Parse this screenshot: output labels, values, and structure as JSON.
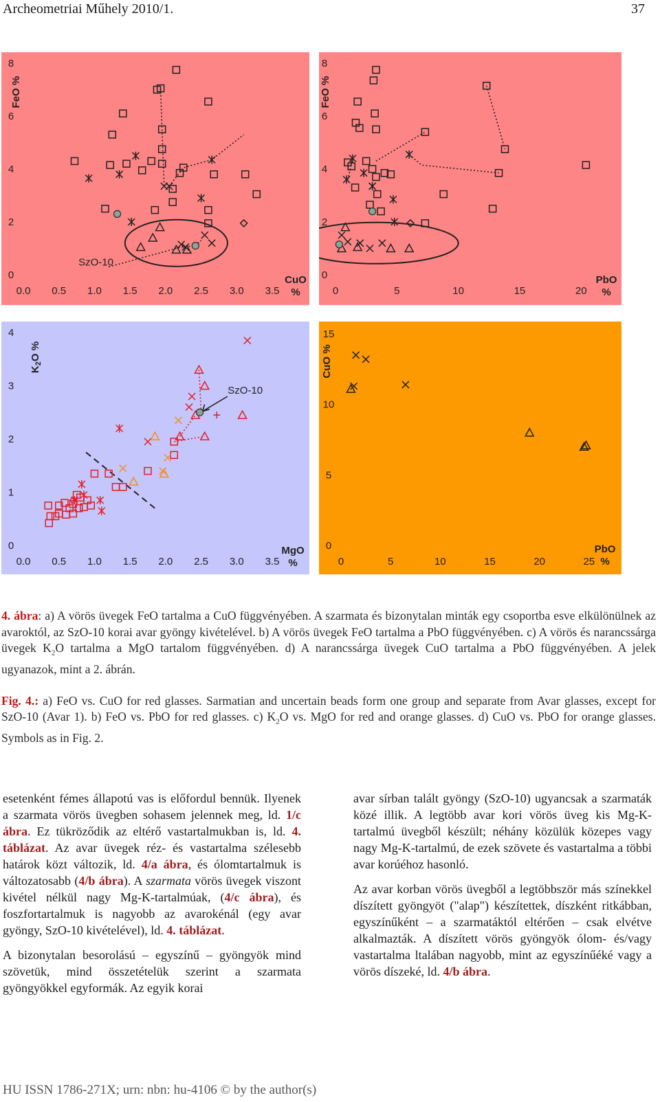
{
  "header": {
    "journal": "Archeometriai Műhely 2010/1.",
    "page": "37"
  },
  "colors": {
    "red_panel": "#fe8585",
    "blue_panel": "#c4c6fc",
    "orange_panel": "#fe9a01",
    "red_mark": "#e21f24",
    "orange_mark": "#f68c1f"
  },
  "charts": {
    "a": {
      "ylabel": "FeO %",
      "xlabel_top": "CuO",
      "xlabel_bottom": "%",
      "annotation": "SzO-10",
      "x_ticks": [
        "0.0",
        "0.5",
        "1.0",
        "1.5",
        "2.0",
        "2.5",
        "3.0",
        "3.5"
      ],
      "y_ticks": [
        "0",
        "2",
        "4",
        "6",
        "8"
      ]
    },
    "b": {
      "ylabel": "FeO %",
      "xlabel_top": "PbO",
      "xlabel_bottom": "%",
      "x_ticks": [
        "0",
        "5",
        "10",
        "15",
        "20"
      ],
      "y_ticks": [
        "0",
        "2",
        "4",
        "6",
        "8"
      ]
    },
    "c": {
      "ylabel": "K2O %",
      "xlabel_top": "MgO",
      "xlabel_bottom": "%",
      "annotation": "SzO-10",
      "x_ticks": [
        "0.0",
        "0.5",
        "1.0",
        "1.5",
        "2.0",
        "2.5",
        "3.0",
        "3.5"
      ],
      "y_ticks": [
        "0",
        "1",
        "2",
        "3",
        "4"
      ]
    },
    "d": {
      "ylabel": "CuO %",
      "xlabel_top": "PbO",
      "xlabel_bottom": "%",
      "x_ticks": [
        "0",
        "5",
        "10",
        "15",
        "20",
        "25"
      ],
      "y_ticks": [
        "0",
        "5",
        "10",
        "15"
      ]
    }
  },
  "chart_data": [
    {
      "type": "scatter",
      "panel": "a",
      "ylabel": "FeO %",
      "xlabel": "CuO %",
      "xlim": [
        0,
        3.5
      ],
      "ylim": [
        0,
        8
      ],
      "grid": false,
      "points": [
        {
          "s": "square",
          "x": 2.15,
          "y": 7.75
        },
        {
          "s": "square",
          "x": 1.93,
          "y": 7.05
        },
        {
          "s": "square",
          "x": 1.88,
          "y": 7.0
        },
        {
          "s": "square",
          "x": 2.6,
          "y": 6.55
        },
        {
          "s": "square",
          "x": 1.4,
          "y": 6.1
        },
        {
          "s": "square",
          "x": 1.25,
          "y": 5.3
        },
        {
          "s": "square",
          "x": 1.95,
          "y": 5.5
        },
        {
          "s": "square",
          "x": 1.95,
          "y": 4.75
        },
        {
          "s": "square",
          "x": 0.72,
          "y": 4.3
        },
        {
          "s": "square",
          "x": 1.22,
          "y": 4.15
        },
        {
          "s": "square",
          "x": 1.45,
          "y": 4.2
        },
        {
          "s": "square",
          "x": 1.67,
          "y": 3.95
        },
        {
          "s": "square",
          "x": 1.8,
          "y": 4.3
        },
        {
          "s": "square",
          "x": 1.95,
          "y": 4.2
        },
        {
          "s": "square",
          "x": 2.25,
          "y": 4.05
        },
        {
          "s": "square",
          "x": 2.2,
          "y": 3.85
        },
        {
          "s": "square",
          "x": 2.1,
          "y": 3.25
        },
        {
          "s": "square",
          "x": 2.1,
          "y": 2.75
        },
        {
          "s": "square",
          "x": 2.68,
          "y": 3.8
        },
        {
          "s": "square",
          "x": 3.12,
          "y": 3.8
        },
        {
          "s": "square",
          "x": 1.15,
          "y": 2.5
        },
        {
          "s": "square",
          "x": 1.85,
          "y": 2.45
        },
        {
          "s": "square",
          "x": 2.6,
          "y": 2.45
        },
        {
          "s": "square",
          "x": 2.6,
          "y": 1.95
        },
        {
          "s": "square",
          "x": 3.28,
          "y": 3.05
        },
        {
          "s": "star",
          "x": 0.92,
          "y": 3.65
        },
        {
          "s": "star",
          "x": 1.35,
          "y": 3.8
        },
        {
          "s": "star",
          "x": 1.58,
          "y": 4.5
        },
        {
          "s": "star",
          "x": 2.65,
          "y": 4.35
        },
        {
          "s": "star",
          "x": 2.5,
          "y": 2.9
        },
        {
          "s": "star",
          "x": 1.52,
          "y": 2.0
        },
        {
          "s": "cross",
          "x": 1.98,
          "y": 3.35
        },
        {
          "s": "cross",
          "x": 2.05,
          "y": 3.35
        },
        {
          "s": "cross",
          "x": 2.22,
          "y": 1.15
        },
        {
          "s": "cross",
          "x": 2.28,
          "y": 1.05
        },
        {
          "s": "cross",
          "x": 2.55,
          "y": 1.5
        },
        {
          "s": "cross",
          "x": 2.65,
          "y": 1.2
        },
        {
          "s": "triangle",
          "x": 1.92,
          "y": 1.8
        },
        {
          "s": "triangle",
          "x": 1.82,
          "y": 1.4
        },
        {
          "s": "triangle",
          "x": 1.65,
          "y": 1.05
        },
        {
          "s": "triangle",
          "x": 2.15,
          "y": 0.95
        },
        {
          "s": "triangle",
          "x": 2.3,
          "y": 0.95
        },
        {
          "s": "diamond",
          "x": 3.1,
          "y": 1.95
        },
        {
          "s": "circle",
          "x": 1.32,
          "y": 2.3
        },
        {
          "s": "circle",
          "x": 2.42,
          "y": 1.1
        }
      ]
    },
    {
      "type": "scatter",
      "panel": "b",
      "ylabel": "FeO %",
      "xlabel": "PbO %",
      "xlim": [
        0,
        21.5
      ],
      "ylim": [
        0,
        8
      ],
      "grid": false,
      "points": [
        {
          "s": "square",
          "x": 3.3,
          "y": 7.75
        },
        {
          "s": "square",
          "x": 3.1,
          "y": 7.35
        },
        {
          "s": "square",
          "x": 1.8,
          "y": 6.55
        },
        {
          "s": "square",
          "x": 3.2,
          "y": 6.1
        },
        {
          "s": "square",
          "x": 1.65,
          "y": 5.75
        },
        {
          "s": "square",
          "x": 1.95,
          "y": 5.55
        },
        {
          "s": "square",
          "x": 3.3,
          "y": 5.5
        },
        {
          "s": "square",
          "x": 7.3,
          "y": 5.4
        },
        {
          "s": "square",
          "x": 12.3,
          "y": 7.15
        },
        {
          "s": "square",
          "x": 13.8,
          "y": 4.75
        },
        {
          "s": "square",
          "x": 20.4,
          "y": 4.15
        },
        {
          "s": "square",
          "x": 1.0,
          "y": 4.25
        },
        {
          "s": "square",
          "x": 1.3,
          "y": 4.1
        },
        {
          "s": "square",
          "x": 2.5,
          "y": 4.3
        },
        {
          "s": "square",
          "x": 3.0,
          "y": 4.0
        },
        {
          "s": "square",
          "x": 3.3,
          "y": 3.7
        },
        {
          "s": "square",
          "x": 4.0,
          "y": 3.85
        },
        {
          "s": "square",
          "x": 4.5,
          "y": 3.8
        },
        {
          "s": "square",
          "x": 13.3,
          "y": 3.85
        },
        {
          "s": "square",
          "x": 3.4,
          "y": 3.05
        },
        {
          "s": "square",
          "x": 2.8,
          "y": 2.65
        },
        {
          "s": "square",
          "x": 3.7,
          "y": 2.4
        },
        {
          "s": "square",
          "x": 8.8,
          "y": 3.05
        },
        {
          "s": "square",
          "x": 12.8,
          "y": 2.5
        },
        {
          "s": "square",
          "x": 7.3,
          "y": 1.95
        },
        {
          "s": "square",
          "x": 1.6,
          "y": 3.3
        },
        {
          "s": "star",
          "x": 0.9,
          "y": 3.6
        },
        {
          "s": "star",
          "x": 1.4,
          "y": 4.4
        },
        {
          "s": "star",
          "x": 2.3,
          "y": 3.85
        },
        {
          "s": "star",
          "x": 3.0,
          "y": 3.35
        },
        {
          "s": "star",
          "x": 4.7,
          "y": 2.85
        },
        {
          "s": "star",
          "x": 6.0,
          "y": 4.55
        },
        {
          "s": "star",
          "x": 4.8,
          "y": 2.0
        },
        {
          "s": "cross",
          "x": 0.5,
          "y": 1.5
        },
        {
          "s": "cross",
          "x": 1.0,
          "y": 1.25
        },
        {
          "s": "cross",
          "x": 2.0,
          "y": 1.2
        },
        {
          "s": "cross",
          "x": 2.8,
          "y": 1.0
        },
        {
          "s": "cross",
          "x": 3.8,
          "y": 1.2
        },
        {
          "s": "cross",
          "x": 3.0,
          "y": 3.35
        },
        {
          "s": "triangle",
          "x": 0.8,
          "y": 1.8
        },
        {
          "s": "triangle",
          "x": 0.5,
          "y": 1.0
        },
        {
          "s": "triangle",
          "x": 1.8,
          "y": 1.05
        },
        {
          "s": "triangle",
          "x": 4.5,
          "y": 1.0
        },
        {
          "s": "triangle",
          "x": 6.0,
          "y": 1.0
        },
        {
          "s": "diamond",
          "x": 6.1,
          "y": 1.95
        },
        {
          "s": "circle",
          "x": 3.0,
          "y": 2.4
        },
        {
          "s": "circle",
          "x": 0.3,
          "y": 1.15
        }
      ]
    },
    {
      "type": "scatter",
      "panel": "c",
      "ylabel": "K2O %",
      "xlabel": "MgO %",
      "xlim": [
        0,
        3.5
      ],
      "ylim": [
        0,
        4
      ],
      "grid": false,
      "points": [
        {
          "s": "square",
          "c": "red",
          "x": 0.35,
          "y": 0.75
        },
        {
          "s": "square",
          "c": "red",
          "x": 0.5,
          "y": 0.75
        },
        {
          "s": "square",
          "c": "red",
          "x": 0.38,
          "y": 0.55
        },
        {
          "s": "square",
          "c": "red",
          "x": 0.45,
          "y": 0.55
        },
        {
          "s": "square",
          "c": "red",
          "x": 0.36,
          "y": 0.42
        },
        {
          "s": "square",
          "c": "red",
          "x": 0.5,
          "y": 0.6
        },
        {
          "s": "square",
          "c": "red",
          "x": 0.6,
          "y": 0.58
        },
        {
          "s": "square",
          "c": "red",
          "x": 0.65,
          "y": 0.7
        },
        {
          "s": "square",
          "c": "red",
          "x": 0.7,
          "y": 0.78
        },
        {
          "s": "square",
          "c": "red",
          "x": 0.75,
          "y": 0.95
        },
        {
          "s": "square",
          "c": "red",
          "x": 0.8,
          "y": 0.9
        },
        {
          "s": "square",
          "c": "red",
          "x": 0.7,
          "y": 0.6
        },
        {
          "s": "square",
          "c": "red",
          "x": 0.85,
          "y": 0.72
        },
        {
          "s": "square",
          "c": "red",
          "x": 0.9,
          "y": 0.85
        },
        {
          "s": "square",
          "c": "red",
          "x": 0.58,
          "y": 0.8
        },
        {
          "s": "square",
          "c": "red",
          "x": 0.78,
          "y": 0.7
        },
        {
          "s": "square",
          "c": "red",
          "x": 0.95,
          "y": 0.75
        },
        {
          "s": "square",
          "c": "red",
          "x": 1.0,
          "y": 1.35
        },
        {
          "s": "square",
          "c": "red",
          "x": 1.2,
          "y": 1.35
        },
        {
          "s": "square",
          "c": "red",
          "x": 1.3,
          "y": 1.1
        },
        {
          "s": "square",
          "c": "red",
          "x": 1.4,
          "y": 1.1
        },
        {
          "s": "square",
          "c": "red",
          "x": 1.75,
          "y": 1.4
        },
        {
          "s": "square",
          "c": "red",
          "x": 2.12,
          "y": 1.7
        },
        {
          "s": "square",
          "c": "red",
          "x": 2.12,
          "y": 1.95
        },
        {
          "s": "star",
          "c": "red",
          "x": 0.72,
          "y": 0.85
        },
        {
          "s": "star",
          "c": "red",
          "x": 0.82,
          "y": 1.15
        },
        {
          "s": "star",
          "c": "red",
          "x": 0.85,
          "y": 0.95
        },
        {
          "s": "star",
          "c": "red",
          "x": 1.08,
          "y": 0.85
        },
        {
          "s": "star",
          "c": "red",
          "x": 1.1,
          "y": 0.65
        },
        {
          "s": "star",
          "c": "red",
          "x": 1.35,
          "y": 2.2
        },
        {
          "s": "diamond",
          "c": "red",
          "x": 0.7,
          "y": 0.85
        },
        {
          "s": "cross",
          "c": "red",
          "x": 1.75,
          "y": 1.95
        },
        {
          "s": "cross",
          "c": "red",
          "x": 2.33,
          "y": 2.6
        },
        {
          "s": "cross",
          "c": "red",
          "x": 2.37,
          "y": 2.8
        },
        {
          "s": "cross",
          "c": "red",
          "x": 3.15,
          "y": 3.85
        },
        {
          "s": "cross",
          "c": "orange",
          "x": 1.4,
          "y": 1.45
        },
        {
          "s": "cross",
          "c": "orange",
          "x": 1.96,
          "y": 1.4
        },
        {
          "s": "cross",
          "c": "orange",
          "x": 2.03,
          "y": 1.65
        },
        {
          "s": "cross",
          "c": "orange",
          "x": 2.18,
          "y": 2.35
        },
        {
          "s": "triangle",
          "c": "red",
          "x": 2.47,
          "y": 3.3
        },
        {
          "s": "triangle",
          "c": "red",
          "x": 2.55,
          "y": 3.0
        },
        {
          "s": "triangle",
          "c": "red",
          "x": 2.42,
          "y": 2.45
        },
        {
          "s": "triangle",
          "c": "red",
          "x": 2.55,
          "y": 2.05
        },
        {
          "s": "triangle",
          "c": "red",
          "x": 2.2,
          "y": 2.05
        },
        {
          "s": "triangle",
          "c": "red",
          "x": 3.08,
          "y": 2.45
        },
        {
          "s": "triangle",
          "c": "orange",
          "x": 1.85,
          "y": 2.05
        },
        {
          "s": "triangle",
          "c": "orange",
          "x": 1.55,
          "y": 1.2
        },
        {
          "s": "triangle",
          "c": "orange",
          "x": 1.98,
          "y": 1.35
        },
        {
          "s": "plus",
          "c": "red",
          "x": 2.72,
          "y": 2.45
        },
        {
          "s": "circle",
          "c": "red",
          "x": 2.48,
          "y": 2.5
        }
      ]
    },
    {
      "type": "scatter",
      "panel": "d",
      "ylabel": "CuO %",
      "xlabel": "PbO %",
      "xlim": [
        0,
        25.5
      ],
      "ylim": [
        0,
        15
      ],
      "grid": false,
      "points": [
        {
          "s": "cross",
          "x": 1.5,
          "y": 13.5
        },
        {
          "s": "cross",
          "x": 2.5,
          "y": 13.2
        },
        {
          "s": "cross",
          "x": 1.3,
          "y": 11.3
        },
        {
          "s": "cross",
          "x": 6.5,
          "y": 11.4
        },
        {
          "s": "triangle",
          "x": 1.0,
          "y": 11.1
        },
        {
          "s": "triangle",
          "x": 19.0,
          "y": 8.0
        },
        {
          "s": "triangle",
          "x": 24.5,
          "y": 7.0
        },
        {
          "s": "triangle",
          "x": 24.7,
          "y": 7.1
        }
      ]
    }
  ],
  "caption": {
    "hu_label": "4. ábra",
    "hu_text": ": a) A vörös üvegek FeO tartalma a CuO függvényében. A szarmata és bizonytalan minták egy csoportba esve elkülönülnek az avaroktól, az SzO-10 korai avar gyöngy kivételével. b) A vörös üvegek FeO tartalma a PbO függvényében. c) A vörös és narancssárga üvegek K",
    "hu_sub": "2",
    "hu_text2": "O tartalma a MgO tartalom függvényében. d) A narancssárga üvegek CuO tartalma a PbO függvényében. A jelek ugyanazok, mint a 2. ábrán.",
    "en_label": "Fig. 4.:",
    "en_text": " a) FeO vs. CuO for red glasses. Sarmatian and uncertain beads form one group and separate from Avar glasses, except for SzO-10 (Avar 1). b) FeO vs. PbO for red glasses. c) K",
    "en_sub": "2",
    "en_text2": "O vs. MgO for red and orange glasses. d) CuO vs. PbO for orange glasses. Symbols as in Fig. 2."
  },
  "body": {
    "left_p1_a": "esetenként fémes állapotú vas is előfordul bennük. Ilyenek a szarmata vörös üvegben sohasem jelennek meg, ld. ",
    "left_p1_r1": "1/c ábra",
    "left_p1_b": ". Ez tükröződik az eltérő vastartalmukban is, ld. ",
    "left_p1_r2": "4. táblázat",
    "left_p1_c": ". Az avar üvegek réz- és vastartalma szélesebb határok közt változik, ld. ",
    "left_p1_r3": "4/a ábra",
    "left_p1_d": ", és ólomtartalmuk is változatosabb (",
    "left_p1_r4": "4/b ábra",
    "left_p1_e": "). A ",
    "left_p1_it": "szarmata",
    "left_p1_f": " vörös üvegek viszont kivétel nélkül nagy Mg-K-tartalmúak, (",
    "left_p1_r5": "4/c ábra",
    "left_p1_g": "), és foszfortartalmuk is nagyobb az avarokénál (egy avar gyöngy, SzO-10 kivételével), ld. ",
    "left_p1_r6": "4. táblázat",
    "left_p1_h": ".",
    "left_p2": "A bizonytalan besorolású – egyszínű – gyöngyök mind szövetük, mind összetételük szerint a szarmata gyöngyökkel egyformák. Az egyik korai",
    "right_p1": "avar sírban talált gyöngy (SzO-10) ugyancsak a szarmaták közé illik. A legtöbb avar kori vörös üveg kis Mg-K-tartalmú üvegből készült; néhány közülük közepes vagy nagy Mg-K-tartalmú, de ezek szövete és vastartalma a többi avar korúéhoz hasonló.",
    "right_p2_a": "Az avar korban vörös üvegből a legtöbbször más színekkel díszített gyöngyöt (\"alap\") készítettek, díszként ritkábban, egyszínűként – a szarmatáktól eltérően – csak elvétve alkalmazták. A díszített vörös gyöngyök ólom- és/vagy vastartalma ltalában nagyobb, mint az egyszínűéké vagy a vörös díszeké, ld. ",
    "right_p2_r": "4/b ábra",
    "right_p2_b": "."
  },
  "footer": "HU ISSN 1786-271X; urn: nbn: hu-4106 © by the author(s)"
}
